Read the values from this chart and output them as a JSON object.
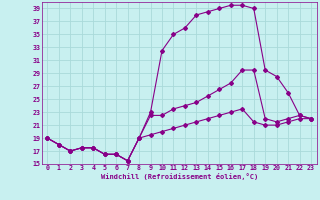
{
  "xlabel": "Windchill (Refroidissement éolien,°C)",
  "bg_color": "#c8f0f0",
  "grid_color": "#aadada",
  "line_color": "#880088",
  "hours": [
    0,
    1,
    2,
    3,
    4,
    5,
    6,
    7,
    8,
    9,
    10,
    11,
    12,
    13,
    14,
    15,
    16,
    17,
    18,
    19,
    20,
    21,
    22,
    23
  ],
  "curve1": [
    19,
    18,
    17,
    17.5,
    17.5,
    16.5,
    16.5,
    15.5,
    19,
    23,
    32.5,
    35,
    36,
    38,
    38.5,
    39,
    39.5,
    39.5,
    39,
    29.5,
    28.5,
    26,
    22.5,
    22
  ],
  "curve2": [
    19,
    18,
    17,
    17.5,
    17.5,
    16.5,
    16.5,
    15.5,
    19,
    22.5,
    22.5,
    23.5,
    24,
    24.5,
    25.5,
    26.5,
    27.5,
    29.5,
    29.5,
    22,
    21.5,
    22,
    22.5,
    22
  ],
  "curve3": [
    19,
    18,
    17,
    17.5,
    17.5,
    16.5,
    16.5,
    15.5,
    19,
    19.5,
    20,
    20.5,
    21,
    21.5,
    22,
    22.5,
    23,
    23.5,
    21.5,
    21,
    21,
    21.5,
    22,
    22
  ],
  "ylim": [
    15,
    40
  ],
  "yticks": [
    15,
    17,
    19,
    21,
    23,
    25,
    27,
    29,
    31,
    33,
    35,
    37,
    39
  ],
  "xlim": [
    -0.5,
    23.5
  ]
}
